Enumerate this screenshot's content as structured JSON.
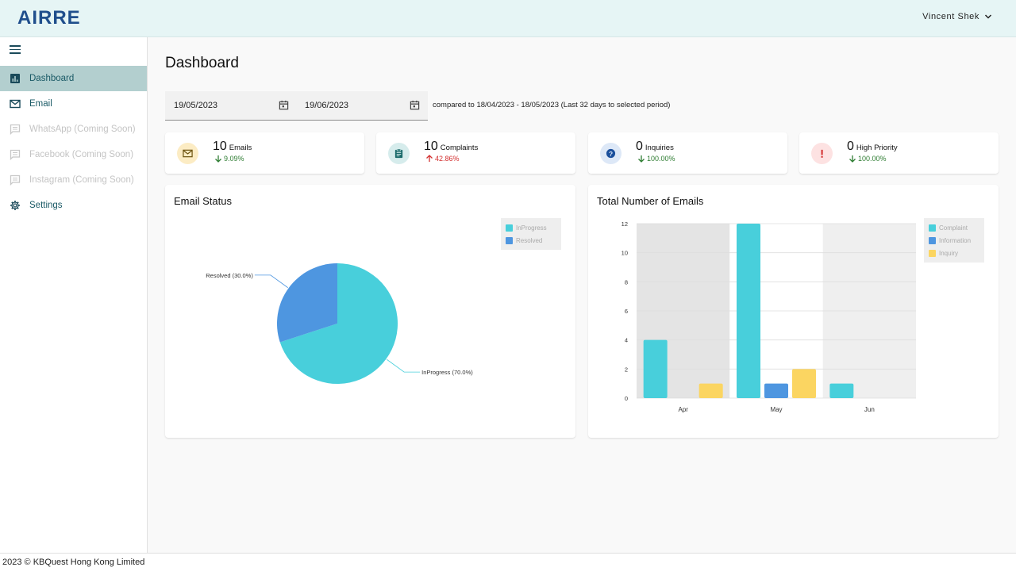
{
  "header": {
    "logo": "AIRRE",
    "user_name": "Vincent Shek"
  },
  "sidebar": {
    "items": [
      {
        "label": "Dashboard",
        "icon": "bar-chart-icon",
        "state": "active"
      },
      {
        "label": "Email",
        "icon": "mail-icon",
        "state": "normal"
      },
      {
        "label": "WhatsApp (Coming Soon)",
        "icon": "chat-icon",
        "state": "disabled"
      },
      {
        "label": "Facebook (Coming Soon)",
        "icon": "chat-icon",
        "state": "disabled"
      },
      {
        "label": "Instagram (Coming Soon)",
        "icon": "chat-icon",
        "state": "disabled"
      },
      {
        "label": "Settings",
        "icon": "gear-icon",
        "state": "normal"
      }
    ]
  },
  "main": {
    "title": "Dashboard",
    "date_from": "19/05/2023",
    "date_to": "19/06/2023",
    "compare_text": "compared to 18/04/2023 - 18/05/2023 (Last 32 days to selected period)"
  },
  "stats": [
    {
      "value": "10",
      "label": "Emails",
      "change": "9.09%",
      "direction": "down",
      "icon": "mail-icon",
      "badge_color": "#fcecc4",
      "icon_color": "#6d5410"
    },
    {
      "value": "10",
      "label": "Complaints",
      "change": "42.86%",
      "direction": "up",
      "icon": "clipboard-icon",
      "badge_color": "#d6ecec",
      "icon_color": "#1a6a6a"
    },
    {
      "value": "0",
      "label": "Inquiries",
      "change": "100.00%",
      "direction": "down",
      "icon": "help-icon",
      "badge_color": "#dde8f7",
      "icon_color": "#1a4f9c"
    },
    {
      "value": "0",
      "label": "High Priority",
      "change": "100.00%",
      "direction": "down",
      "icon": "alert-icon",
      "badge_color": "#fde2e2",
      "icon_color": "#d32f2f"
    }
  ],
  "chart_data": [
    {
      "type": "pie",
      "title": "Email Status",
      "categories": [
        "InProgress",
        "Resolved"
      ],
      "values": [
        70.0,
        30.0
      ],
      "data_labels": [
        "InProgress (70.0%)",
        "Resolved (30.0%)"
      ],
      "colors": [
        "#48cfdb",
        "#4e96e0"
      ],
      "legend": "top-right"
    },
    {
      "type": "bar",
      "title": "Total Number of Emails",
      "categories": [
        "Apr",
        "May",
        "Jun"
      ],
      "series": [
        {
          "name": "Complaint",
          "values": [
            4,
            12,
            1
          ],
          "color": "#48cfdb"
        },
        {
          "name": "Information",
          "values": [
            0,
            1,
            0
          ],
          "color": "#4e96e0"
        },
        {
          "name": "Inquiry",
          "values": [
            1,
            2,
            0
          ],
          "color": "#fbd561"
        }
      ],
      "ylim": [
        0,
        12
      ],
      "yticks": [
        "0",
        "2",
        "4",
        "6",
        "8",
        "10",
        "12"
      ],
      "grid": true,
      "legend": "top-right"
    }
  ],
  "footer": {
    "text": "2023 © KBQuest Hong Kong Limited"
  }
}
